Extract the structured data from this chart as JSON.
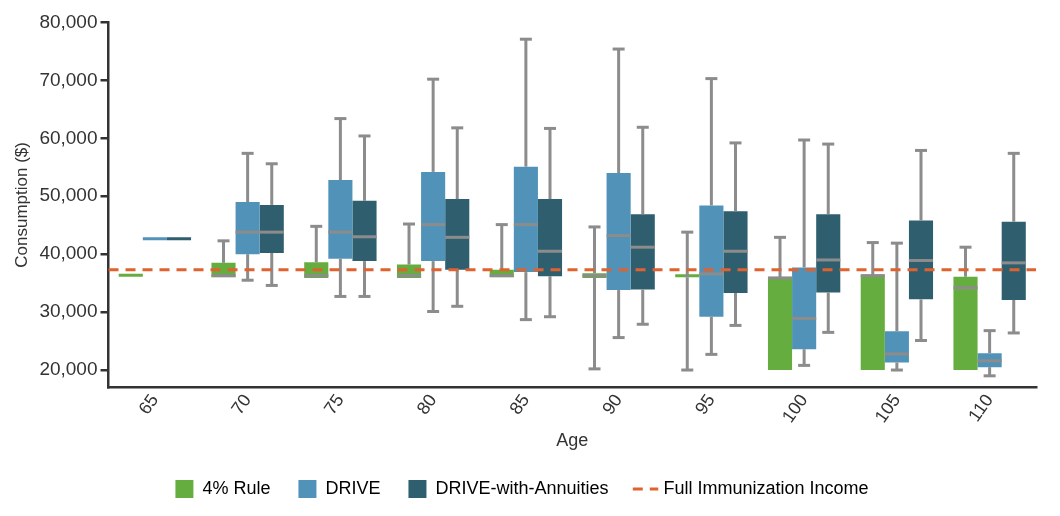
{
  "chart_data": {
    "type": "box",
    "xlabel": "Age",
    "ylabel": "Consumption ($)",
    "categories": [
      "65",
      "70",
      "75",
      "80",
      "85",
      "90",
      "95",
      "100",
      "105",
      "110"
    ],
    "series": [
      {
        "name": "4% Rule",
        "color": "#65ad3f",
        "boxes": [
          {
            "low": 36100,
            "q1": 36100,
            "median": 36100,
            "q3": 36100,
            "high": 36100
          },
          {
            "low": 36000,
            "q1": 36000,
            "median": 36300,
            "q3": 38500,
            "high": 42300
          },
          {
            "low": 35900,
            "q1": 35900,
            "median": 36300,
            "q3": 38600,
            "high": 44800
          },
          {
            "low": 35900,
            "q1": 35900,
            "median": 36300,
            "q3": 38200,
            "high": 45200
          },
          {
            "low": 36000,
            "q1": 36000,
            "median": 36300,
            "q3": 37300,
            "high": 45100
          },
          {
            "low": 20200,
            "q1": 35900,
            "median": 36300,
            "q3": 36700,
            "high": 44700
          },
          {
            "low": 20000,
            "q1": 36000,
            "median": 36000,
            "q3": 36000,
            "high": 43800
          },
          {
            "low": 20000,
            "q1": 20000,
            "median": 35900,
            "q3": 35900,
            "high": 42900
          },
          {
            "low": 20000,
            "q1": 20000,
            "median": 36300,
            "q3": 36300,
            "high": 42000
          },
          {
            "low": 20000,
            "q1": 20000,
            "median": 34200,
            "q3": 36100,
            "high": 41200
          }
        ]
      },
      {
        "name": "DRIVE",
        "color": "#5193b8",
        "boxes": [
          {
            "low": 42400,
            "q1": 42400,
            "median": 42400,
            "q3": 42400,
            "high": 42400
          },
          {
            "low": 35500,
            "q1": 40000,
            "median": 43800,
            "q3": 49000,
            "high": 57400
          },
          {
            "low": 32700,
            "q1": 39200,
            "median": 43800,
            "q3": 52800,
            "high": 63400
          },
          {
            "low": 30100,
            "q1": 38800,
            "median": 45100,
            "q3": 54200,
            "high": 70200
          },
          {
            "low": 28700,
            "q1": 36900,
            "median": 45100,
            "q3": 55100,
            "high": 77100
          },
          {
            "low": 25600,
            "q1": 33800,
            "median": 43200,
            "q3": 54000,
            "high": 75400
          },
          {
            "low": 22700,
            "q1": 29200,
            "median": 36600,
            "q3": 48400,
            "high": 70300
          },
          {
            "low": 20800,
            "q1": 23600,
            "median": 28900,
            "q3": 37700,
            "high": 59700
          },
          {
            "low": 20000,
            "q1": 21300,
            "median": 22800,
            "q3": 26700,
            "high": 41900
          },
          {
            "low": 19000,
            "q1": 20500,
            "median": 21600,
            "q3": 22900,
            "high": 26800
          }
        ]
      },
      {
        "name": "DRIVE-with-Annuities",
        "color": "#2f5f6e",
        "boxes": [
          {
            "low": 42400,
            "q1": 42400,
            "median": 42400,
            "q3": 42400,
            "high": 42400
          },
          {
            "low": 34600,
            "q1": 40200,
            "median": 43800,
            "q3": 48500,
            "high": 55600
          },
          {
            "low": 32700,
            "q1": 38800,
            "median": 43000,
            "q3": 49200,
            "high": 60400
          },
          {
            "low": 31000,
            "q1": 37300,
            "median": 42900,
            "q3": 49500,
            "high": 61800
          },
          {
            "low": 29200,
            "q1": 36200,
            "median": 40500,
            "q3": 49500,
            "high": 61700
          },
          {
            "low": 27900,
            "q1": 33900,
            "median": 41200,
            "q3": 46900,
            "high": 61900
          },
          {
            "low": 27700,
            "q1": 33300,
            "median": 40500,
            "q3": 47400,
            "high": 59200
          },
          {
            "low": 26500,
            "q1": 33400,
            "median": 39000,
            "q3": 46900,
            "high": 59000
          },
          {
            "low": 25100,
            "q1": 32200,
            "median": 38900,
            "q3": 45800,
            "high": 57900
          },
          {
            "low": 26400,
            "q1": 32100,
            "median": 38500,
            "q3": 45600,
            "high": 57400
          }
        ]
      }
    ],
    "ref_lines": [
      {
        "axis": "y",
        "value": 37300,
        "label": "Full Immunization Income",
        "color": "#e0622f",
        "line_style": "dashed"
      }
    ],
    "ylim": [
      17000,
      80000
    ],
    "yticks": [
      {
        "value": 20000,
        "label": "20,000"
      },
      {
        "value": 30000,
        "label": "30,000"
      },
      {
        "value": 40000,
        "label": "40,000"
      },
      {
        "value": 50000,
        "label": "50,000"
      },
      {
        "value": 60000,
        "label": "60,000"
      },
      {
        "value": 70000,
        "label": "70,000"
      },
      {
        "value": 80000,
        "label": "80,000"
      }
    ],
    "grid": false,
    "legend": "bottom"
  }
}
